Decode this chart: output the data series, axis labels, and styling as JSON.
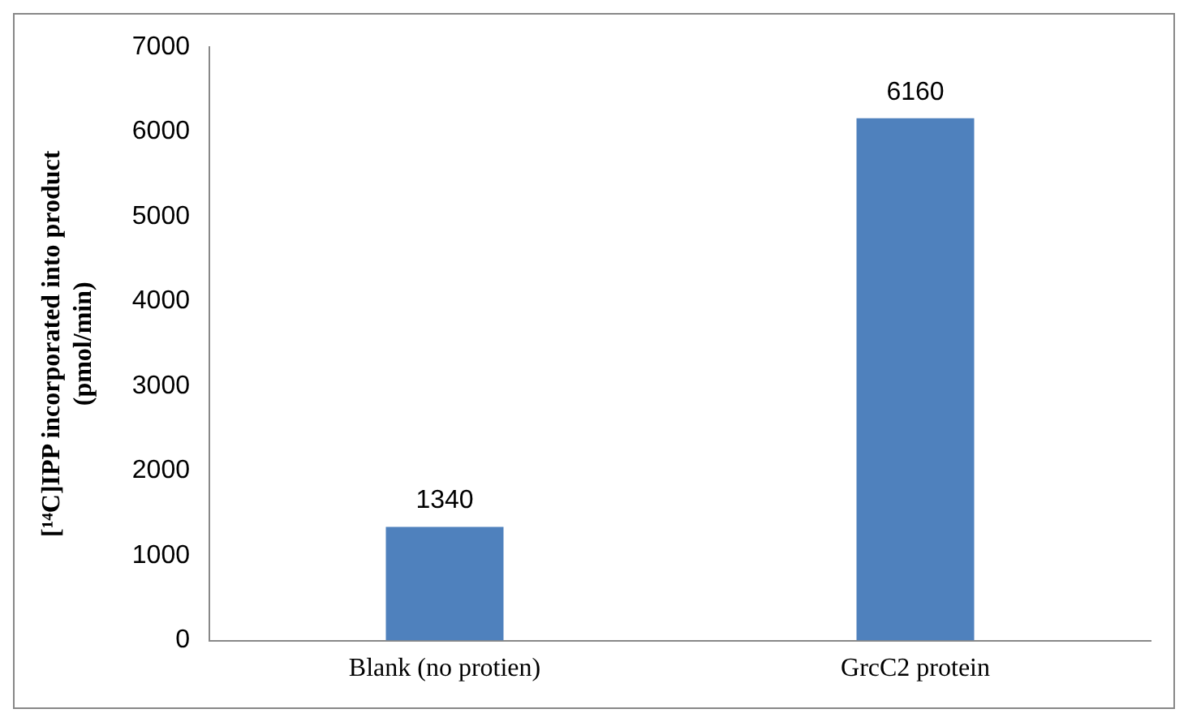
{
  "chart_data": {
    "type": "bar",
    "ylabel": "[¹⁴C]IPP incorporated into product\n(pmol/min)",
    "categories": [
      "Blank (no protien)",
      "GrcC2 protein"
    ],
    "values": [
      1340,
      6160
    ],
    "color": "#4f81bd",
    "ylim": [
      0,
      7000
    ],
    "yticks": [
      0,
      1000,
      2000,
      3000,
      4000,
      5000,
      6000,
      7000
    ],
    "grid": false,
    "legend": false,
    "data_labels": true
  }
}
